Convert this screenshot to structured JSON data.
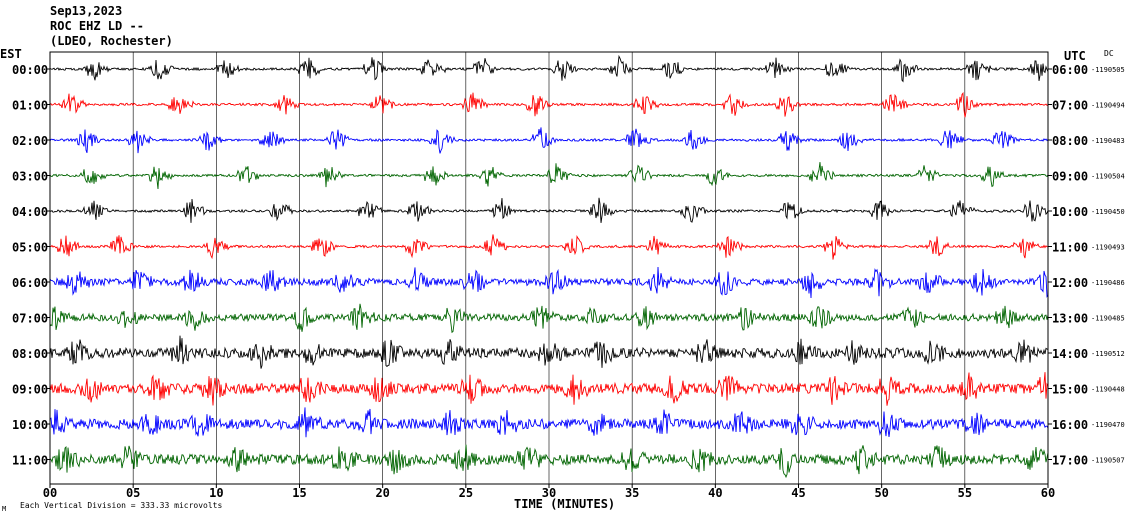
{
  "header": {
    "date": "Sep13,2023",
    "station": "ROC EHZ LD --",
    "network": "(LDEO, Rochester)"
  },
  "chart_data": {
    "type": "line",
    "title": "Sep13,2023 ROC EHZ LD -- (LDEO, Rochester)",
    "left_axis_label": "EST",
    "right_axis_label": "UTC",
    "right_axis_sub": "DC",
    "xlabel": "TIME (MINUTES)",
    "xlim": [
      0,
      60
    ],
    "x_ticks": [
      "00",
      "05",
      "10",
      "15",
      "20",
      "25",
      "30",
      "35",
      "40",
      "45",
      "50",
      "55",
      "60"
    ],
    "scale_note": "Each Vertical Division = 333.33 microvolts",
    "scale_mark": "M",
    "colors": [
      "#000000",
      "#ff0000",
      "#0000ff",
      "#006400"
    ],
    "rows": [
      {
        "est": "00:00",
        "utc": "06:00",
        "dc": "-1190505"
      },
      {
        "est": "01:00",
        "utc": "07:00",
        "dc": "-1190494"
      },
      {
        "est": "02:00",
        "utc": "08:00",
        "dc": "-1190483"
      },
      {
        "est": "03:00",
        "utc": "09:00",
        "dc": "-1190504"
      },
      {
        "est": "04:00",
        "utc": "10:00",
        "dc": "-1190450"
      },
      {
        "est": "05:00",
        "utc": "11:00",
        "dc": "-1190493"
      },
      {
        "est": "06:00",
        "utc": "12:00",
        "dc": "-1190486"
      },
      {
        "est": "07:00",
        "utc": "13:00",
        "dc": "-1190485"
      },
      {
        "est": "08:00",
        "utc": "14:00",
        "dc": "-1190512"
      },
      {
        "est": "09:00",
        "utc": "15:00",
        "dc": "-1190448"
      },
      {
        "est": "10:00",
        "utc": "16:00",
        "dc": "-1190470"
      },
      {
        "est": "11:00",
        "utc": "17:00",
        "dc": "-1190507"
      }
    ]
  }
}
